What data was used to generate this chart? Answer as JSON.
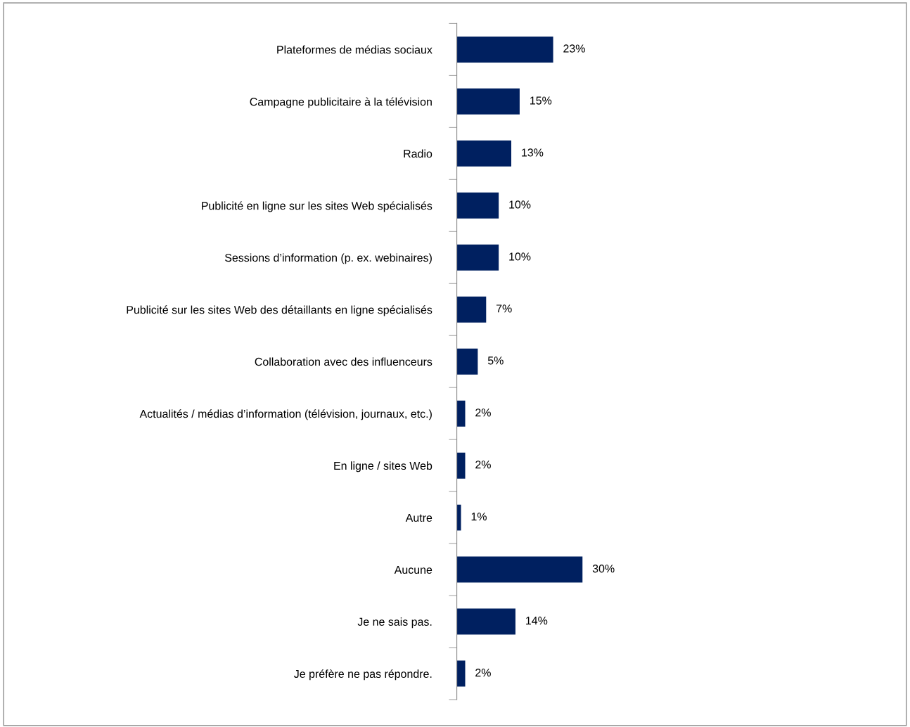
{
  "chart_data": {
    "type": "bar",
    "orientation": "horizontal",
    "categories": [
      "Plateformes de médias sociaux",
      "Campagne publicitaire à la télévision",
      "Radio",
      "Publicité en ligne sur les sites Web spécialisés",
      "Sessions d’information (p. ex. webinaires)",
      "Publicité sur les sites Web des détaillants en ligne spécialisés",
      "Collaboration avec des influenceurs",
      "Actualités / médias d’information (télévision, journaux, etc.)",
      "En ligne / sites Web",
      "Autre",
      "Aucune",
      "Je ne sais pas.",
      "Je préfère ne pas répondre."
    ],
    "values": [
      23,
      15,
      13,
      10,
      10,
      7,
      5,
      2,
      2,
      1,
      30,
      14,
      2
    ],
    "value_labels": [
      "23%",
      "15%",
      "13%",
      "10%",
      "10%",
      "7%",
      "5%",
      "2%",
      "2%",
      "1%",
      "30%",
      "14%",
      "2%"
    ],
    "color": "#002060",
    "tick_labels": "y",
    "grid": false,
    "legend": false
  }
}
